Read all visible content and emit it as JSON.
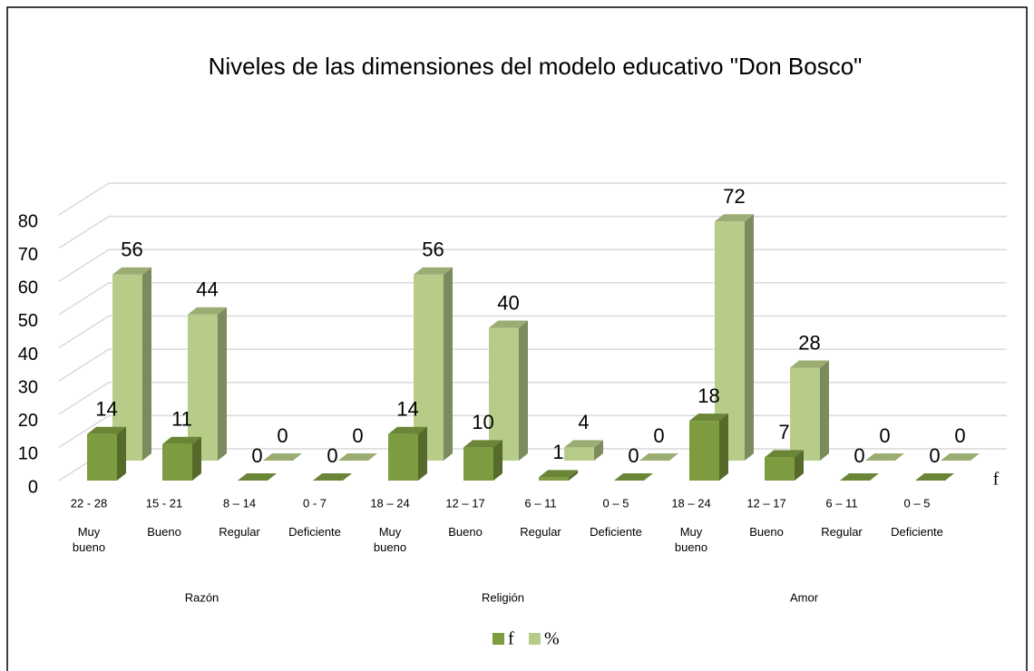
{
  "chart_data": {
    "type": "bar3d",
    "title": "Niveles de las dimensiones del modelo educativo \"Don Bosco\"",
    "categories": [
      "22 - 28",
      "15 - 21",
      "8 – 14",
      "0 - 7",
      "18 – 24",
      "12 – 17",
      "6 – 11",
      "0 – 5",
      "18 – 24",
      "12 – 17",
      "6 – 11",
      "0 – 5"
    ],
    "category_levels": [
      "Muy bueno",
      "Bueno",
      "Regular",
      "Deficiente",
      "Muy bueno",
      "Bueno",
      "Regular",
      "Deficiente",
      "Muy bueno",
      "Bueno",
      "Regular",
      "Deficiente"
    ],
    "groups": [
      "Razón",
      "Religión",
      "Amor"
    ],
    "series": [
      {
        "name": "f",
        "color": "#7d9c3f",
        "values": [
          14,
          11,
          0,
          0,
          14,
          10,
          1,
          0,
          18,
          7,
          0,
          0
        ]
      },
      {
        "name": "%",
        "color": "#b7cc89",
        "values": [
          56,
          44,
          0,
          0,
          56,
          40,
          4,
          0,
          72,
          28,
          0,
          0
        ]
      }
    ],
    "ylim": [
      0,
      80
    ],
    "yticks": [
      0,
      10,
      20,
      30,
      40,
      50,
      60,
      70,
      80
    ],
    "grid": true,
    "legend": "bottom"
  }
}
